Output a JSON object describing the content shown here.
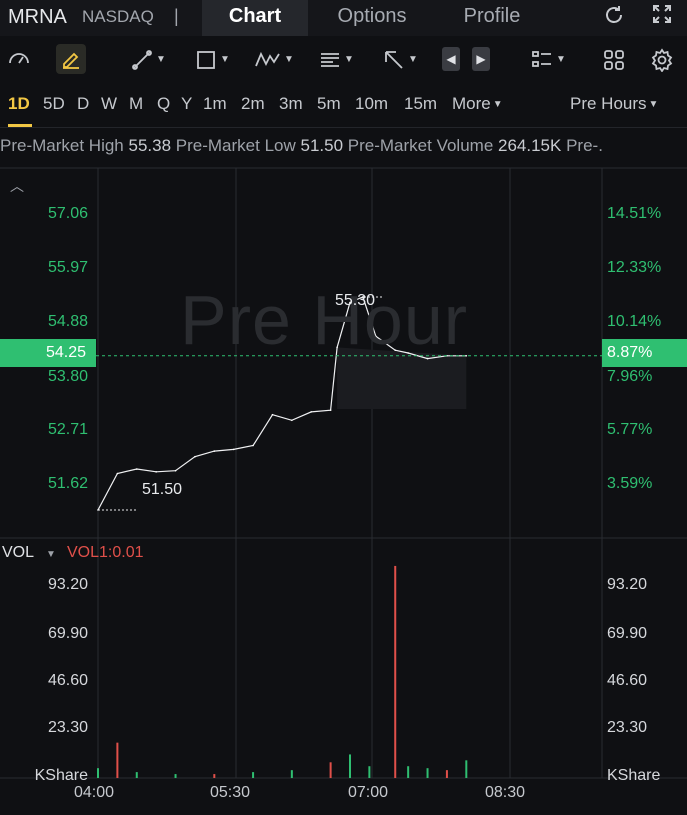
{
  "header": {
    "ticker": "MRNA",
    "exchange": "NASDAQ",
    "separator": "|",
    "tabs": [
      {
        "label": "Chart",
        "active": true
      },
      {
        "label": "Options",
        "active": false
      },
      {
        "label": "Profile",
        "active": false
      }
    ],
    "icons": [
      "refresh-icon",
      "fullscreen-icon"
    ]
  },
  "toolbar": {
    "icons": [
      "gauge-icon",
      "pencil-icon",
      "trend-line-icon",
      "rectangle-icon",
      "pattern-icon",
      "text-note-icon",
      "arrow-icon",
      "prev-icon",
      "next-icon",
      "layout-list-icon",
      "grid-icon",
      "settings-icon"
    ]
  },
  "timeframes": {
    "items": [
      "1D",
      "5D",
      "D",
      "W",
      "M",
      "Q",
      "Y",
      "1m",
      "2m",
      "3m",
      "5m",
      "10m",
      "15m"
    ],
    "active": "1D",
    "more_label": "More",
    "session_label": "Pre Hours"
  },
  "stats": {
    "high_label": "Pre-Market High",
    "high_value": "55.38",
    "low_label": "Pre-Market Low",
    "low_value": "51.50",
    "volume_label": "Pre-Market Volume",
    "volume_value": "264.15K",
    "trailing": "Pre-."
  },
  "price_chart": {
    "watermark": "Pre Hour",
    "left_ticks": [
      "57.06",
      "55.97",
      "54.88",
      "53.80",
      "52.71",
      "51.62"
    ],
    "right_ticks": [
      "14.51%",
      "12.33%",
      "10.14%",
      "7.96%",
      "5.77%",
      "3.59%"
    ],
    "current_price": "54.25",
    "current_pct": "8.87%",
    "high_annotation": "55.30",
    "low_annotation": "51.50"
  },
  "volume_chart": {
    "label": "VOL",
    "indicator": "VOL1:0.01",
    "left_ticks": [
      "93.20",
      "69.90",
      "46.60",
      "23.30"
    ],
    "right_ticks": [
      "93.20",
      "69.90",
      "46.60",
      "23.30"
    ],
    "unit_left": "KShare",
    "unit_right": "KShare"
  },
  "x_axis": [
    "04:00",
    "05:30",
    "07:00",
    "08:30"
  ],
  "colors": {
    "up": "#2fbf71",
    "down": "#e0504a",
    "accent": "#f2c744"
  },
  "chart_data": [
    {
      "type": "line",
      "ylim": [
        51.0,
        57.6
      ],
      "x": [
        "04:00",
        "04:15",
        "04:30",
        "04:45",
        "05:00",
        "05:15",
        "05:30",
        "05:45",
        "06:00",
        "06:15",
        "06:30",
        "06:45",
        "07:00",
        "07:05",
        "07:15",
        "07:25",
        "07:35",
        "07:50",
        "08:00",
        "08:15",
        "08:30",
        "08:45"
      ],
      "values": [
        51.5,
        52.15,
        52.23,
        52.18,
        52.2,
        52.45,
        52.55,
        52.58,
        52.65,
        53.2,
        53.1,
        53.25,
        53.28,
        54.4,
        55.2,
        55.3,
        54.6,
        54.35,
        54.3,
        54.2,
        54.25,
        54.25
      ]
    },
    {
      "type": "bar",
      "ylim": [
        0,
        110
      ],
      "x": [
        "04:00",
        "04:15",
        "04:30",
        "05:00",
        "05:30",
        "06:00",
        "06:30",
        "07:00",
        "07:15",
        "07:30",
        "07:50",
        "08:00",
        "08:15",
        "08:30",
        "08:45"
      ],
      "values": [
        5,
        18,
        3,
        2,
        2,
        3,
        4,
        8,
        12,
        6,
        108,
        6,
        5,
        4,
        9
      ]
    }
  ]
}
